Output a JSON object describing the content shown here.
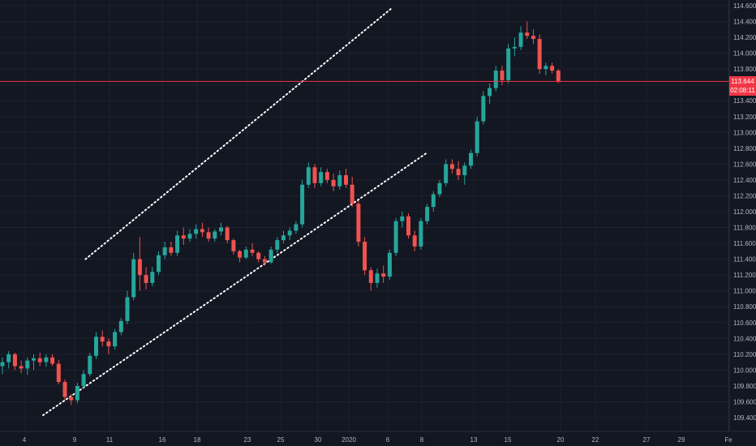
{
  "chart_data": {
    "type": "candlestick",
    "y_ticks": [
      "114.600",
      "114.400",
      "114.200",
      "114.000",
      "113.800",
      "113.600",
      "113.400",
      "113.200",
      "113.000",
      "112.800",
      "112.600",
      "112.400",
      "112.200",
      "112.000",
      "111.800",
      "111.600",
      "111.400",
      "111.200",
      "111.000",
      "110.800",
      "110.600",
      "110.400",
      "110.200",
      "110.000",
      "109.800",
      "109.600",
      "109.400"
    ],
    "x_ticks": [
      "4",
      "9",
      "11",
      "16",
      "18",
      "23",
      "25",
      "30",
      "2020",
      "6",
      "8",
      "13",
      "15",
      "20",
      "22",
      "27",
      "29",
      "Fe"
    ],
    "ylim": [
      109.35,
      114.68
    ],
    "last_price": "113.644",
    "countdown": "02:08:11",
    "last_price_value": 113.644,
    "colors": {
      "up": "#26a69a",
      "down": "#ef5350",
      "last_price": "#f23645",
      "trendline": "#ffffff",
      "grid": "#1e2230",
      "text": "#b2b5be"
    },
    "channel_lines": [
      {
        "name": "upper-channel-line",
        "from": [
          13.3,
          111.4
        ],
        "to": [
          62.2,
          114.56
        ]
      },
      {
        "name": "lower-channel-line",
        "from": [
          6.5,
          109.43
        ],
        "to": [
          68.1,
          112.75
        ]
      }
    ],
    "candles": [
      {
        "o": 110.05,
        "h": 110.16,
        "l": 109.95,
        "c": 110.1
      },
      {
        "o": 110.1,
        "h": 110.24,
        "l": 110.02,
        "c": 110.2
      },
      {
        "o": 110.2,
        "h": 110.22,
        "l": 110.0,
        "c": 110.05
      },
      {
        "o": 110.05,
        "h": 110.12,
        "l": 109.96,
        "c": 110.02
      },
      {
        "o": 110.02,
        "h": 110.16,
        "l": 109.94,
        "c": 110.12
      },
      {
        "o": 110.12,
        "h": 110.2,
        "l": 110.0,
        "c": 110.15
      },
      {
        "o": 110.15,
        "h": 110.22,
        "l": 110.05,
        "c": 110.1
      },
      {
        "o": 110.1,
        "h": 110.2,
        "l": 110.04,
        "c": 110.16
      },
      {
        "o": 110.16,
        "h": 110.2,
        "l": 110.05,
        "c": 110.08
      },
      {
        "o": 110.08,
        "h": 110.13,
        "l": 109.82,
        "c": 109.85
      },
      {
        "o": 109.85,
        "h": 109.88,
        "l": 109.62,
        "c": 109.66
      },
      {
        "o": 109.66,
        "h": 109.7,
        "l": 109.56,
        "c": 109.62
      },
      {
        "o": 109.62,
        "h": 109.84,
        "l": 109.58,
        "c": 109.8
      },
      {
        "o": 109.8,
        "h": 110.0,
        "l": 109.76,
        "c": 109.95
      },
      {
        "o": 109.95,
        "h": 110.22,
        "l": 109.92,
        "c": 110.18
      },
      {
        "o": 110.18,
        "h": 110.48,
        "l": 110.14,
        "c": 110.42
      },
      {
        "o": 110.42,
        "h": 110.5,
        "l": 110.3,
        "c": 110.36
      },
      {
        "o": 110.36,
        "h": 110.4,
        "l": 110.2,
        "c": 110.3
      },
      {
        "o": 110.3,
        "h": 110.52,
        "l": 110.26,
        "c": 110.48
      },
      {
        "o": 110.48,
        "h": 110.66,
        "l": 110.44,
        "c": 110.62
      },
      {
        "o": 110.62,
        "h": 111.0,
        "l": 110.58,
        "c": 110.92
      },
      {
        "o": 110.92,
        "h": 111.48,
        "l": 110.88,
        "c": 111.4
      },
      {
        "o": 111.4,
        "h": 111.68,
        "l": 111.0,
        "c": 111.2
      },
      {
        "o": 111.2,
        "h": 111.3,
        "l": 111.02,
        "c": 111.1
      },
      {
        "o": 111.1,
        "h": 111.3,
        "l": 111.06,
        "c": 111.24
      },
      {
        "o": 111.24,
        "h": 111.5,
        "l": 111.2,
        "c": 111.45
      },
      {
        "o": 111.45,
        "h": 111.62,
        "l": 111.4,
        "c": 111.55
      },
      {
        "o": 111.55,
        "h": 111.62,
        "l": 111.44,
        "c": 111.48
      },
      {
        "o": 111.48,
        "h": 111.76,
        "l": 111.44,
        "c": 111.7
      },
      {
        "o": 111.7,
        "h": 111.8,
        "l": 111.58,
        "c": 111.66
      },
      {
        "o": 111.66,
        "h": 111.78,
        "l": 111.62,
        "c": 111.72
      },
      {
        "o": 111.72,
        "h": 111.84,
        "l": 111.66,
        "c": 111.78
      },
      {
        "o": 111.78,
        "h": 111.86,
        "l": 111.68,
        "c": 111.74
      },
      {
        "o": 111.74,
        "h": 111.8,
        "l": 111.62,
        "c": 111.66
      },
      {
        "o": 111.66,
        "h": 111.78,
        "l": 111.62,
        "c": 111.75
      },
      {
        "o": 111.75,
        "h": 111.86,
        "l": 111.7,
        "c": 111.8
      },
      {
        "o": 111.8,
        "h": 111.82,
        "l": 111.6,
        "c": 111.64
      },
      {
        "o": 111.64,
        "h": 111.66,
        "l": 111.46,
        "c": 111.5
      },
      {
        "o": 111.5,
        "h": 111.52,
        "l": 111.36,
        "c": 111.42
      },
      {
        "o": 111.42,
        "h": 111.56,
        "l": 111.4,
        "c": 111.52
      },
      {
        "o": 111.52,
        "h": 111.6,
        "l": 111.44,
        "c": 111.48
      },
      {
        "o": 111.48,
        "h": 111.5,
        "l": 111.36,
        "c": 111.4
      },
      {
        "o": 111.4,
        "h": 111.44,
        "l": 111.32,
        "c": 111.36
      },
      {
        "o": 111.36,
        "h": 111.56,
        "l": 111.34,
        "c": 111.52
      },
      {
        "o": 111.52,
        "h": 111.68,
        "l": 111.48,
        "c": 111.64
      },
      {
        "o": 111.64,
        "h": 111.76,
        "l": 111.6,
        "c": 111.7
      },
      {
        "o": 111.7,
        "h": 111.8,
        "l": 111.64,
        "c": 111.76
      },
      {
        "o": 111.76,
        "h": 111.88,
        "l": 111.72,
        "c": 111.84
      },
      {
        "o": 111.84,
        "h": 112.4,
        "l": 111.8,
        "c": 112.34
      },
      {
        "o": 112.34,
        "h": 112.62,
        "l": 112.3,
        "c": 112.56
      },
      {
        "o": 112.56,
        "h": 112.6,
        "l": 112.3,
        "c": 112.36
      },
      {
        "o": 112.36,
        "h": 112.56,
        "l": 112.32,
        "c": 112.5
      },
      {
        "o": 112.5,
        "h": 112.54,
        "l": 112.36,
        "c": 112.4
      },
      {
        "o": 112.4,
        "h": 112.48,
        "l": 112.26,
        "c": 112.32
      },
      {
        "o": 112.32,
        "h": 112.52,
        "l": 112.28,
        "c": 112.46
      },
      {
        "o": 112.46,
        "h": 112.54,
        "l": 112.3,
        "c": 112.34
      },
      {
        "o": 112.34,
        "h": 112.44,
        "l": 112.06,
        "c": 112.1
      },
      {
        "o": 112.1,
        "h": 112.14,
        "l": 111.56,
        "c": 111.62
      },
      {
        "o": 111.62,
        "h": 111.68,
        "l": 111.2,
        "c": 111.26
      },
      {
        "o": 111.26,
        "h": 111.3,
        "l": 111.0,
        "c": 111.1
      },
      {
        "o": 111.1,
        "h": 111.28,
        "l": 111.04,
        "c": 111.22
      },
      {
        "o": 111.22,
        "h": 111.32,
        "l": 111.1,
        "c": 111.18
      },
      {
        "o": 111.18,
        "h": 111.52,
        "l": 111.14,
        "c": 111.48
      },
      {
        "o": 111.48,
        "h": 111.92,
        "l": 111.44,
        "c": 111.88
      },
      {
        "o": 111.88,
        "h": 112.0,
        "l": 111.8,
        "c": 111.94
      },
      {
        "o": 111.94,
        "h": 111.98,
        "l": 111.66,
        "c": 111.7
      },
      {
        "o": 111.7,
        "h": 111.76,
        "l": 111.5,
        "c": 111.56
      },
      {
        "o": 111.56,
        "h": 111.92,
        "l": 111.52,
        "c": 111.88
      },
      {
        "o": 111.88,
        "h": 112.1,
        "l": 111.84,
        "c": 112.06
      },
      {
        "o": 112.06,
        "h": 112.26,
        "l": 112.0,
        "c": 112.22
      },
      {
        "o": 112.22,
        "h": 112.4,
        "l": 112.18,
        "c": 112.36
      },
      {
        "o": 112.36,
        "h": 112.66,
        "l": 112.32,
        "c": 112.6
      },
      {
        "o": 112.6,
        "h": 112.66,
        "l": 112.48,
        "c": 112.54
      },
      {
        "o": 112.54,
        "h": 112.64,
        "l": 112.4,
        "c": 112.46
      },
      {
        "o": 112.46,
        "h": 112.62,
        "l": 112.34,
        "c": 112.58
      },
      {
        "o": 112.58,
        "h": 112.78,
        "l": 112.54,
        "c": 112.74
      },
      {
        "o": 112.74,
        "h": 113.2,
        "l": 112.7,
        "c": 113.14
      },
      {
        "o": 113.14,
        "h": 113.52,
        "l": 113.1,
        "c": 113.46
      },
      {
        "o": 113.46,
        "h": 113.62,
        "l": 113.36,
        "c": 113.56
      },
      {
        "o": 113.56,
        "h": 113.84,
        "l": 113.52,
        "c": 113.78
      },
      {
        "o": 113.78,
        "h": 113.84,
        "l": 113.6,
        "c": 113.66
      },
      {
        "o": 113.66,
        "h": 114.12,
        "l": 113.62,
        "c": 114.06
      },
      {
        "o": 114.06,
        "h": 114.2,
        "l": 113.96,
        "c": 114.08
      },
      {
        "o": 114.08,
        "h": 114.34,
        "l": 114.04,
        "c": 114.26
      },
      {
        "o": 114.26,
        "h": 114.4,
        "l": 114.18,
        "c": 114.22
      },
      {
        "o": 114.22,
        "h": 114.3,
        "l": 114.12,
        "c": 114.18
      },
      {
        "o": 114.18,
        "h": 114.24,
        "l": 113.74,
        "c": 113.8
      },
      {
        "o": 113.8,
        "h": 113.88,
        "l": 113.72,
        "c": 113.84
      },
      {
        "o": 113.84,
        "h": 113.88,
        "l": 113.74,
        "c": 113.78
      },
      {
        "o": 113.78,
        "h": 113.8,
        "l": 113.62,
        "c": 113.644
      }
    ]
  }
}
